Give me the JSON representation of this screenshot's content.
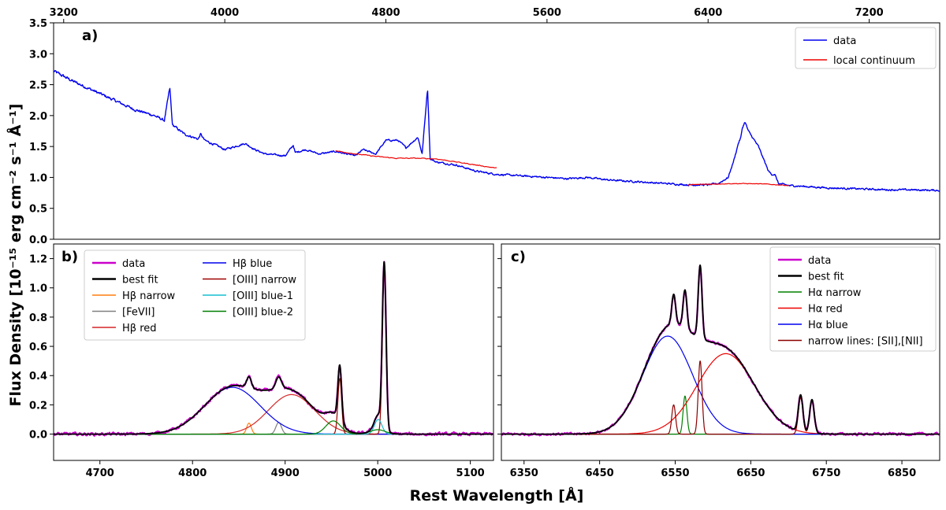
{
  "figure": {
    "ylabel": "Flux Density [10⁻¹⁵ erg cm⁻² s⁻¹ Å⁻¹]",
    "xlabel": "Rest Wavelength [Å]"
  },
  "chart_data": [
    {
      "id": "a",
      "panel_label": "a)",
      "type": "line",
      "xlim": [
        3150,
        7550
      ],
      "ylim": [
        0.0,
        3.5
      ],
      "xticks": [
        3200,
        4000,
        4800,
        5600,
        6400,
        7200
      ],
      "xtick_position": "top",
      "yticks": [
        0.0,
        0.5,
        1.0,
        1.5,
        2.0,
        2.5,
        3.0,
        3.5
      ],
      "yticklabels": [
        "0.0",
        "0.5",
        "1.0",
        "1.5",
        "2.0",
        "2.5",
        "3.0",
        "3.5"
      ],
      "legend_position": "top-right",
      "series": [
        {
          "name": "data",
          "color": "#0000ee",
          "x": [
            3150,
            3250,
            3350,
            3450,
            3550,
            3650,
            3700,
            3727,
            3740,
            3800,
            3868,
            3880,
            3900,
            3970,
            4000,
            4101,
            4150,
            4200,
            4300,
            4340,
            4350,
            4400,
            4470,
            4550,
            4650,
            4686,
            4750,
            4800,
            4860,
            4900,
            4959,
            4980,
            5007,
            5020,
            5050,
            5150,
            5250,
            5350,
            5500,
            5600,
            5700,
            5800,
            5900,
            6000,
            6100,
            6200,
            6300,
            6400,
            6450,
            6500,
            6530,
            6550,
            6563,
            6570,
            6583,
            6600,
            6650,
            6700,
            6716,
            6731,
            6750,
            6800,
            6900,
            7000,
            7100,
            7200,
            7300,
            7400,
            7550
          ],
          "y": [
            2.72,
            2.55,
            2.4,
            2.25,
            2.1,
            2.0,
            1.92,
            2.45,
            1.85,
            1.7,
            1.62,
            1.7,
            1.6,
            1.5,
            1.45,
            1.55,
            1.45,
            1.38,
            1.35,
            1.52,
            1.4,
            1.45,
            1.38,
            1.42,
            1.35,
            1.45,
            1.38,
            1.6,
            1.6,
            1.48,
            1.65,
            1.38,
            2.45,
            1.3,
            1.25,
            1.2,
            1.1,
            1.05,
            1.02,
            1.0,
            0.98,
            1.0,
            0.96,
            0.94,
            0.92,
            0.9,
            0.88,
            0.88,
            0.9,
            1.0,
            1.3,
            1.55,
            1.65,
            1.8,
            1.9,
            1.75,
            1.5,
            1.1,
            1.05,
            1.05,
            0.9,
            0.87,
            0.85,
            0.83,
            0.82,
            0.81,
            0.8,
            0.8,
            0.79
          ]
        },
        {
          "name": "local continuum",
          "color": "#ee0000",
          "x": [
            4550,
            4650,
            4750,
            4850,
            4950,
            5050,
            5150,
            5250,
            5350
          ],
          "y": [
            1.43,
            1.38,
            1.34,
            1.31,
            1.31,
            1.3,
            1.25,
            1.2,
            1.15
          ],
          "x2": [
            6300,
            6400,
            6500,
            6600,
            6700,
            6750,
            6800
          ],
          "y2": [
            0.88,
            0.89,
            0.9,
            0.9,
            0.89,
            0.88,
            0.87
          ]
        }
      ]
    },
    {
      "id": "b",
      "panel_label": "b)",
      "type": "line",
      "xlim": [
        4650,
        5125
      ],
      "ylim": [
        -0.18,
        1.3
      ],
      "xticks": [
        4700,
        4800,
        4900,
        5000,
        5100
      ],
      "yticks": [
        0.0,
        0.2,
        0.4,
        0.6,
        0.8,
        1.0,
        1.2
      ],
      "yticklabels": [
        "0.0",
        "0.2",
        "0.4",
        "0.6",
        "0.8",
        "1.0",
        "1.2"
      ],
      "legend_position": "top-left",
      "components": [
        {
          "name": "data",
          "color": "#cc00cc"
        },
        {
          "name": "best fit",
          "color": "#000000"
        },
        {
          "name": "Hβ narrow",
          "color": "#ff7f0e",
          "gaussians": [
            [
              4861,
              0.075,
              2.5
            ]
          ]
        },
        {
          "name": "[FeVII]",
          "color": "#808080",
          "gaussians": [
            [
              4893,
              0.08,
              3.0
            ]
          ]
        },
        {
          "name": "Hβ red",
          "color": "#d62728",
          "gaussians": [
            [
              4907,
              0.27,
              25
            ]
          ]
        },
        {
          "name": "Hβ blue",
          "color": "#0000ee",
          "gaussians": [
            [
              4843,
              0.32,
              30
            ]
          ]
        },
        {
          "name": "[OIII] narrow",
          "color": "#a00000",
          "gaussians": [
            [
              4959,
              0.38,
              2.0
            ],
            [
              5007,
              1.13,
              2.0
            ]
          ]
        },
        {
          "name": "[OIII] blue-1",
          "color": "#17becf",
          "gaussians": [
            [
              5000.5,
              0.1,
              4.0
            ]
          ]
        },
        {
          "name": "[OIII] blue-2",
          "color": "#008000",
          "gaussians": [
            [
              4952,
              0.09,
              8.0
            ],
            [
              5000,
              0.03,
              8.0
            ]
          ]
        }
      ]
    },
    {
      "id": "c",
      "panel_label": "c)",
      "type": "line",
      "xlim": [
        6320,
        6900
      ],
      "ylim": [
        -0.18,
        1.3
      ],
      "xticks": [
        6350,
        6450,
        6550,
        6650,
        6750,
        6850
      ],
      "yticks": [
        0.0,
        0.2,
        0.4,
        0.6,
        0.8,
        1.0,
        1.2
      ],
      "yticklabels": [
        "",
        "",
        "",
        "",
        "",
        "",
        ""
      ],
      "legend_position": "top-right",
      "components": [
        {
          "name": "data",
          "color": "#cc00cc"
        },
        {
          "name": "best fit",
          "color": "#000000"
        },
        {
          "name": "Hα narrow",
          "color": "#008000",
          "gaussians": [
            [
              6563,
              0.26,
              2.5
            ]
          ]
        },
        {
          "name": "Hα red",
          "color": "#ee0000",
          "gaussians": [
            [
              6617,
              0.55,
              38
            ]
          ]
        },
        {
          "name": "Hα blue",
          "color": "#0000ee",
          "gaussians": [
            [
              6540,
              0.67,
              33
            ]
          ]
        },
        {
          "name": "narrow lines: [SII],[NII]",
          "color": "#8b0000",
          "gaussians": [
            [
              6548,
              0.2,
              2.5
            ],
            [
              6583,
              0.5,
              2.5
            ],
            [
              6716,
              0.25,
              3.0
            ],
            [
              6731,
              0.23,
              3.0
            ]
          ]
        }
      ]
    }
  ]
}
